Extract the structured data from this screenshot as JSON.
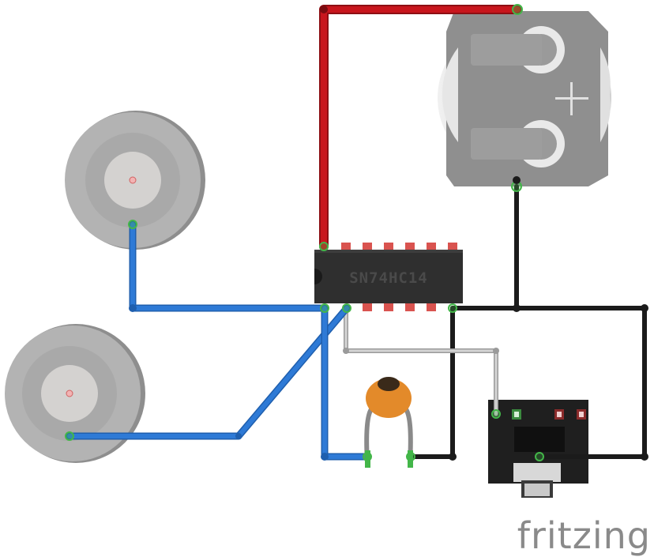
{
  "diagram": {
    "ic_label": "SN74HC14",
    "brand": "fritzing",
    "colors": {
      "wire_red": "#c8161d",
      "wire_blue": "#2e7ad6",
      "wire_black": "#1b1b1b",
      "wire_gray": "#b0b0b0",
      "ic_body": "#2f2f2f",
      "pin_red": "#d9534f",
      "connector_green": "#43b649",
      "capacitor": "#e38a2a",
      "battery_holder": "#8c8c8c",
      "piezo": "#b4b4b4",
      "brand_gray": "#8a8a8a"
    },
    "components": [
      {
        "name": "piezo-disc-top",
        "label": ""
      },
      {
        "name": "piezo-disc-bottom",
        "label": ""
      },
      {
        "name": "coin-battery-holder",
        "label": "+"
      },
      {
        "name": "hex-inverter-ic",
        "label": "SN74HC14"
      },
      {
        "name": "ceramic-capacitor",
        "label": ""
      },
      {
        "name": "audio-jack",
        "label": ""
      }
    ]
  }
}
